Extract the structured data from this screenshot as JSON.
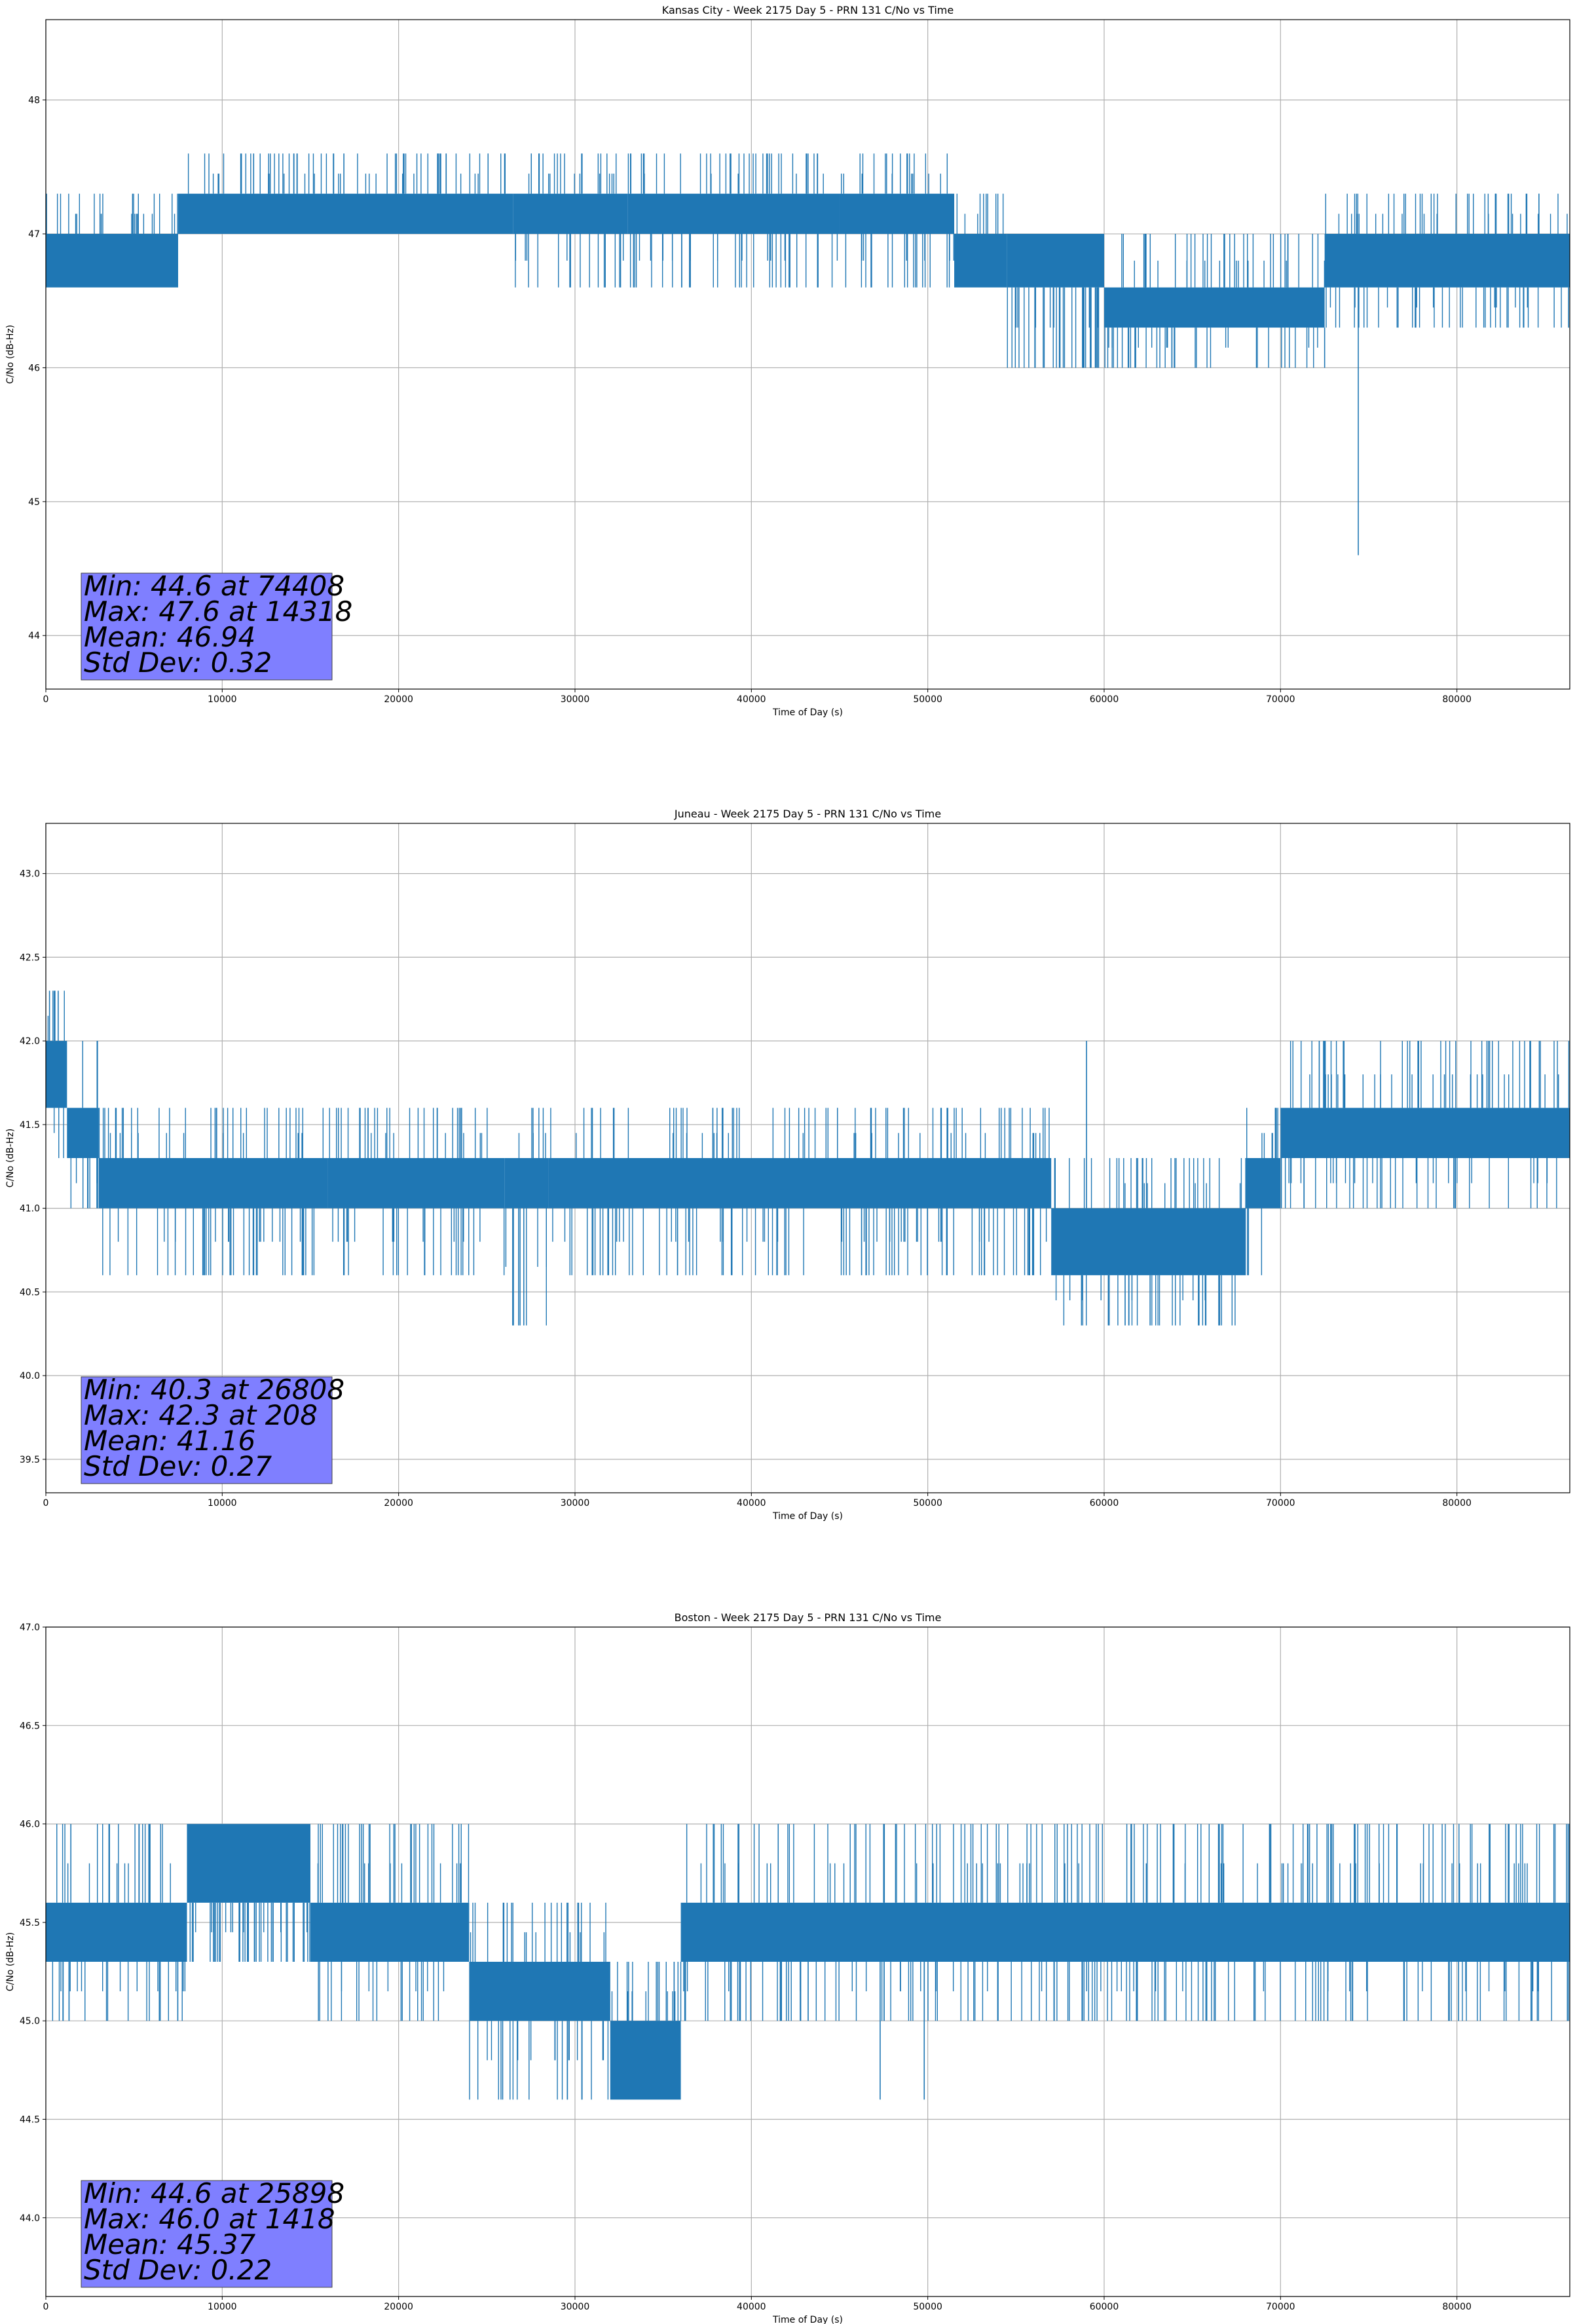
{
  "chart_data": [
    {
      "type": "line",
      "title": "Kansas City - Week 2175 Day 5 - PRN 131 C/No vs Time",
      "xlabel": "Time of Day (s)",
      "ylabel": "C/No (dB-Hz)",
      "xlim": [
        0,
        86400
      ],
      "ylim": [
        43.6,
        48.6
      ],
      "xticks": [
        0,
        10000,
        20000,
        30000,
        40000,
        50000,
        60000,
        70000,
        80000
      ],
      "yticks": [
        44,
        45,
        46,
        47,
        48
      ],
      "ytick_labels": [
        "44",
        "45",
        "46",
        "47",
        "48"
      ],
      "grid": true,
      "series_color": "#1f77b4",
      "quantization": 0.3,
      "segments": [
        {
          "x": [
            0,
            7500
          ],
          "band": [
            46.6,
            47.0
          ],
          "ext": [
            46.6,
            47.3
          ]
        },
        {
          "x": [
            7500,
            26500
          ],
          "band": [
            47.0,
            47.3
          ],
          "ext": [
            47.0,
            47.6
          ]
        },
        {
          "x": [
            26500,
            33000
          ],
          "band": [
            47.0,
            47.3
          ],
          "ext": [
            46.6,
            47.6
          ]
        },
        {
          "x": [
            33000,
            45000
          ],
          "band": [
            47.0,
            47.3
          ],
          "ext": [
            46.6,
            47.6
          ]
        },
        {
          "x": [
            45000,
            51500
          ],
          "band": [
            47.0,
            47.3
          ],
          "ext": [
            46.6,
            47.6
          ]
        },
        {
          "x": [
            51500,
            54500
          ],
          "band": [
            46.6,
            47.0
          ],
          "ext": [
            46.6,
            47.3
          ]
        },
        {
          "x": [
            54500,
            60000
          ],
          "band": [
            46.6,
            47.0
          ],
          "ext": [
            46.0,
            47.0
          ]
        },
        {
          "x": [
            60000,
            72500
          ],
          "band": [
            46.3,
            46.6
          ],
          "ext": [
            46.0,
            47.0
          ]
        },
        {
          "x": [
            72500,
            86400
          ],
          "band": [
            46.6,
            47.0
          ],
          "ext": [
            46.3,
            47.3
          ]
        }
      ],
      "spikes": [
        {
          "x": 74408,
          "y": 44.6
        },
        {
          "x": 59500,
          "y": 46.0
        },
        {
          "x": 64000,
          "y": 46.0
        },
        {
          "x": 72500,
          "y": 46.0
        }
      ],
      "stats": {
        "min": "Min: 44.6 at 74408",
        "max": "Max: 47.6 at 14318",
        "mean": "Mean: 46.94",
        "std": "Std Dev: 0.32"
      },
      "stats_box_color": "#7f7fff"
    },
    {
      "type": "line",
      "title": "Juneau - Week 2175 Day 5 - PRN 131 C/No vs Time",
      "xlabel": "Time of Day (s)",
      "ylabel": "C/No (dB-Hz)",
      "xlim": [
        0,
        86400
      ],
      "ylim": [
        39.3,
        43.3
      ],
      "xticks": [
        0,
        10000,
        20000,
        30000,
        40000,
        50000,
        60000,
        70000,
        80000
      ],
      "yticks": [
        39.5,
        40.0,
        40.5,
        41.0,
        41.5,
        42.0,
        42.5,
        43.0
      ],
      "ytick_labels": [
        "39.5",
        "40.0",
        "40.5",
        "41.0",
        "41.5",
        "42.0",
        "42.5",
        "43.0"
      ],
      "grid": true,
      "series_color": "#1f77b4",
      "quantization": 0.3,
      "segments": [
        {
          "x": [
            0,
            1200
          ],
          "band": [
            41.6,
            42.0
          ],
          "ext": [
            41.3,
            42.3
          ]
        },
        {
          "x": [
            1200,
            3000
          ],
          "band": [
            41.3,
            41.6
          ],
          "ext": [
            41.0,
            42.0
          ]
        },
        {
          "x": [
            3000,
            16000
          ],
          "band": [
            41.0,
            41.3
          ],
          "ext": [
            40.6,
            41.6
          ]
        },
        {
          "x": [
            16000,
            26000
          ],
          "band": [
            41.0,
            41.3
          ],
          "ext": [
            40.6,
            41.6
          ]
        },
        {
          "x": [
            26000,
            28500
          ],
          "band": [
            41.0,
            41.3
          ],
          "ext": [
            40.3,
            41.6
          ]
        },
        {
          "x": [
            28500,
            57000
          ],
          "band": [
            41.0,
            41.3
          ],
          "ext": [
            40.6,
            41.6
          ]
        },
        {
          "x": [
            57000,
            68000
          ],
          "band": [
            40.6,
            41.0
          ],
          "ext": [
            40.3,
            41.3
          ]
        },
        {
          "x": [
            68000,
            70000
          ],
          "band": [
            41.0,
            41.3
          ],
          "ext": [
            40.6,
            41.6
          ]
        },
        {
          "x": [
            70000,
            86400
          ],
          "band": [
            41.3,
            41.6
          ],
          "ext": [
            41.0,
            42.0
          ]
        }
      ],
      "spikes": [
        {
          "x": 208,
          "y": 42.3
        },
        {
          "x": 700,
          "y": 42.3
        },
        {
          "x": 26808,
          "y": 40.3
        },
        {
          "x": 59000,
          "y": 42.0
        },
        {
          "x": 66500,
          "y": 40.3
        }
      ],
      "stats": {
        "min": "Min: 40.3 at 26808",
        "max": "Max: 42.3 at 208",
        "mean": "Mean: 41.16",
        "std": "Std Dev: 0.27"
      },
      "stats_box_color": "#7f7fff"
    },
    {
      "type": "line",
      "title": "Boston - Week 2175 Day 5 - PRN 131 C/No vs Time",
      "xlabel": "Time of Day (s)",
      "ylabel": "C/No (dB-Hz)",
      "xlim": [
        0,
        86400
      ],
      "ylim": [
        43.6,
        47.0
      ],
      "xticks": [
        0,
        10000,
        20000,
        30000,
        40000,
        50000,
        60000,
        70000,
        80000
      ],
      "yticks": [
        44.0,
        44.5,
        45.0,
        45.5,
        46.0,
        46.5,
        47.0
      ],
      "ytick_labels": [
        "44.0",
        "44.5",
        "45.0",
        "45.5",
        "46.0",
        "46.5",
        "47.0"
      ],
      "grid": true,
      "series_color": "#1f77b4",
      "quantization": 0.3,
      "segments": [
        {
          "x": [
            0,
            8000
          ],
          "band": [
            45.3,
            45.6
          ],
          "ext": [
            45.0,
            46.0
          ]
        },
        {
          "x": [
            8000,
            15000
          ],
          "band": [
            45.6,
            46.0
          ],
          "ext": [
            45.3,
            46.0
          ]
        },
        {
          "x": [
            15000,
            24000
          ],
          "band": [
            45.3,
            45.6
          ],
          "ext": [
            45.0,
            46.0
          ]
        },
        {
          "x": [
            24000,
            32000
          ],
          "band": [
            45.0,
            45.3
          ],
          "ext": [
            44.6,
            45.6
          ]
        },
        {
          "x": [
            32000,
            36000
          ],
          "band": [
            44.6,
            45.0
          ],
          "ext": [
            44.6,
            45.3
          ]
        },
        {
          "x": [
            36000,
            86400
          ],
          "band": [
            45.3,
            45.6
          ],
          "ext": [
            45.0,
            46.0
          ]
        }
      ],
      "spikes": [
        {
          "x": 1418,
          "y": 46.0
        },
        {
          "x": 25898,
          "y": 44.6
        },
        {
          "x": 47300,
          "y": 44.6
        },
        {
          "x": 49800,
          "y": 44.6
        }
      ],
      "stats": {
        "min": "Min: 44.6 at 25898",
        "max": "Max: 46.0 at 1418",
        "mean": "Mean: 45.37",
        "std": "Std Dev: 0.22"
      },
      "stats_box_color": "#7f7fff"
    }
  ]
}
